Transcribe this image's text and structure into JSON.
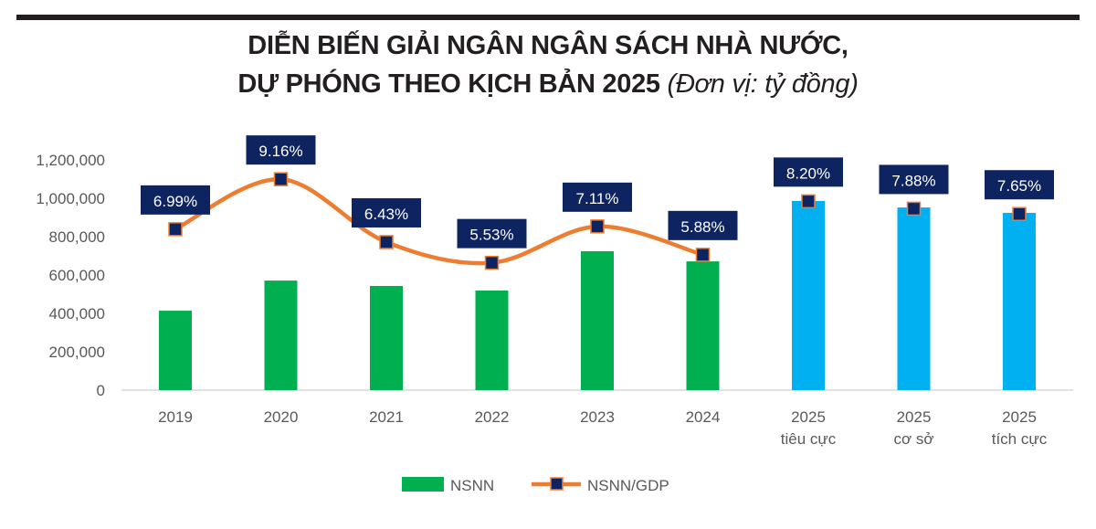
{
  "chart_data": {
    "type": "bar",
    "title_line1": "DIỄN BIẾN GIẢI NGÂN NGÂN SÁCH NHÀ NƯỚC,",
    "title_line2": "DỰ PHÓNG THEO KỊCH BẢN 2025",
    "unit": "(Đơn vị: tỷ đồng)",
    "categories": [
      [
        "2019"
      ],
      [
        "2020"
      ],
      [
        "2021"
      ],
      [
        "2022"
      ],
      [
        "2023"
      ],
      [
        "2024"
      ],
      [
        "2025",
        "tiêu cực"
      ],
      [
        "2025",
        "cơ sở"
      ],
      [
        "2025",
        "tích cực"
      ]
    ],
    "ylim": [
      0,
      1200000
    ],
    "yticks": [
      "0",
      "200,000",
      "400,000",
      "600,000",
      "800,000",
      "1,000,000",
      "1,200,000"
    ],
    "y2lim": [
      0,
      10
    ],
    "series": [
      {
        "name": "NSNN",
        "type": "bar",
        "values": [
          414000,
          571000,
          543000,
          519000,
          724000,
          671000,
          986000,
          952000,
          924000
        ],
        "colors": [
          "#00b050",
          "#00b050",
          "#00b050",
          "#00b050",
          "#00b050",
          "#00b050",
          "#00b0f0",
          "#00b0f0",
          "#00b0f0"
        ]
      },
      {
        "name": "NSNN/GDP",
        "type": "line",
        "axis": "secondary",
        "values": [
          6.99,
          9.16,
          6.43,
          5.53,
          7.11,
          5.88,
          8.2,
          7.88,
          7.65
        ],
        "labels": [
          "6.99%",
          "9.16%",
          "6.43%",
          "5.53%",
          "7.11%",
          "5.88%",
          "8.20%",
          "7.88%",
          "7.65%"
        ],
        "line_points": 6,
        "color": "#ed7d31",
        "marker_color": "#0e2461"
      }
    ],
    "legend": [
      "NSNN",
      "NSNN/GDP"
    ],
    "legend_position": "bottom",
    "grid": false
  }
}
